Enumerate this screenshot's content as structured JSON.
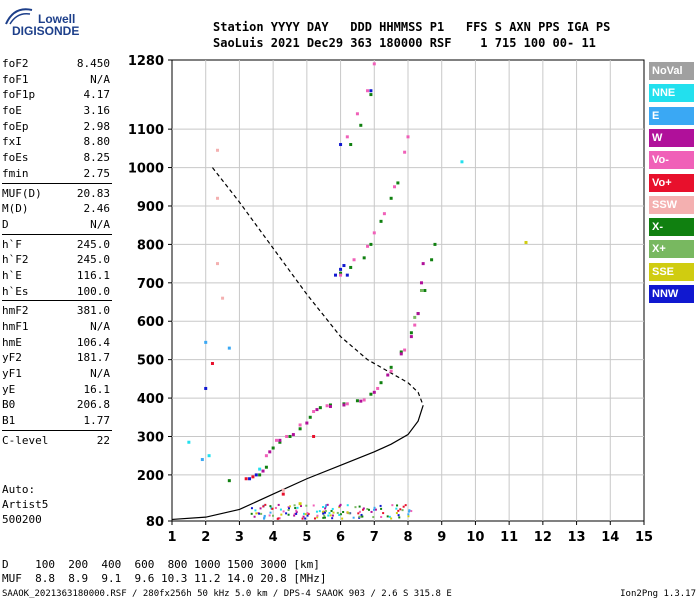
{
  "logo": {
    "line1": "Lowell",
    "line2": "DIGISONDE"
  },
  "header": {
    "line1": "Station YYYY DAY   DDD HHMMSS P1   FFS S AXN PPS IGA PS",
    "line2": "SaoLuis 2021 Dec29 363 180000 RSF    1 715 100 00- 11"
  },
  "params": [
    {
      "name": "foF2",
      "value": "8.450"
    },
    {
      "name": "foF1",
      "value": "N/A"
    },
    {
      "name": "foF1p",
      "value": "4.17"
    },
    {
      "name": "foE",
      "value": "3.16"
    },
    {
      "name": "foEp",
      "value": "2.98"
    },
    {
      "name": "fxI",
      "value": "8.80"
    },
    {
      "name": "foEs",
      "value": "8.25"
    },
    {
      "name": "fmin",
      "value": "2.75"
    },
    {
      "name": "MUF(D)",
      "value": "20.83"
    },
    {
      "name": "M(D)",
      "value": "2.46"
    },
    {
      "name": "D",
      "value": "N/A"
    },
    {
      "name": "h`F",
      "value": "245.0"
    },
    {
      "name": "h`F2",
      "value": "245.0"
    },
    {
      "name": "h`E",
      "value": "116.1"
    },
    {
      "name": "h`Es",
      "value": "100.0"
    },
    {
      "name": "hmF2",
      "value": "381.0"
    },
    {
      "name": "hmF1",
      "value": "N/A"
    },
    {
      "name": "hmE",
      "value": "106.4"
    },
    {
      "name": "yF2",
      "value": "181.7"
    },
    {
      "name": "yF1",
      "value": "N/A"
    },
    {
      "name": "yE",
      "value": "16.1"
    },
    {
      "name": "B0",
      "value": "206.8"
    },
    {
      "name": "B1",
      "value": "1.77"
    },
    {
      "name": "C-level",
      "value": "22"
    }
  ],
  "auto": {
    "l1": "Auto:",
    "l2": "Artist5",
    "l3": "500200"
  },
  "legend": [
    {
      "label": "NoVal",
      "color": "#a0a0a0"
    },
    {
      "label": "NNE",
      "color": "#22e0ee"
    },
    {
      "label": "E",
      "color": "#3aa8f4"
    },
    {
      "label": "W",
      "color": "#b0109a"
    },
    {
      "label": "Vo-",
      "color": "#f060b8"
    },
    {
      "label": "Vo+",
      "color": "#e8102c"
    },
    {
      "label": "SSW",
      "color": "#f4b0b0"
    },
    {
      "label": "X-",
      "color": "#108010"
    },
    {
      "label": "X+",
      "color": "#78b860"
    },
    {
      "label": "SSE",
      "color": "#d0cc10"
    },
    {
      "label": "NNW",
      "color": "#1018d0"
    }
  ],
  "bottom": {
    "d_line": "D    100  200  400  600  800 1000 1500 3000 [km]",
    "muf_line": "MUF  8.8  8.9  9.1  9.6 10.3 11.2 14.0 20.8 [MHz]"
  },
  "footer": {
    "left": "SAAOK_2021363180000.RSF / 280fx256h 50 kHz 5.0 km / DPS-4 SAAOK 903 / 2.6 S 315.8 E",
    "right": "Ion2Png 1.3.17"
  },
  "chart_data": {
    "type": "scatter",
    "xlim": [
      1,
      15
    ],
    "ylim": [
      80,
      1280
    ],
    "x_ticks": [
      1,
      2,
      3,
      4,
      5,
      6,
      7,
      8,
      9,
      10,
      11,
      12,
      13,
      14,
      15
    ],
    "y_ticks": [
      80,
      200,
      300,
      400,
      500,
      600,
      700,
      800,
      900,
      1000,
      1100,
      1280
    ],
    "grid": true,
    "series": [
      {
        "name": "X-",
        "color": "#108010",
        "points": [
          [
            2.7,
            185
          ],
          [
            3.6,
            200
          ],
          [
            3.8,
            220
          ],
          [
            4.0,
            270
          ],
          [
            4.2,
            285
          ],
          [
            4.5,
            300
          ],
          [
            4.8,
            320
          ],
          [
            5.1,
            350
          ],
          [
            5.4,
            375
          ],
          [
            5.7,
            382
          ],
          [
            6.1,
            385
          ],
          [
            6.5,
            393
          ],
          [
            6.9,
            410
          ],
          [
            7.2,
            440
          ],
          [
            7.5,
            480
          ],
          [
            7.8,
            520
          ],
          [
            8.1,
            570
          ],
          [
            8.3,
            620
          ],
          [
            8.5,
            680
          ],
          [
            8.7,
            760
          ],
          [
            8.8,
            800
          ],
          [
            6.0,
            725
          ],
          [
            6.3,
            740
          ],
          [
            6.7,
            765
          ],
          [
            6.9,
            800
          ],
          [
            7.2,
            860
          ],
          [
            7.5,
            920
          ],
          [
            7.7,
            960
          ],
          [
            6.3,
            1060
          ],
          [
            6.6,
            1110
          ],
          [
            6.9,
            1190
          ]
        ]
      },
      {
        "name": "W",
        "color": "#b0109a",
        "points": [
          [
            3.7,
            210
          ],
          [
            3.9,
            260
          ],
          [
            4.2,
            290
          ],
          [
            4.6,
            305
          ],
          [
            5.0,
            335
          ],
          [
            5.3,
            370
          ],
          [
            5.7,
            378
          ],
          [
            6.1,
            382
          ],
          [
            6.6,
            392
          ],
          [
            7.0,
            415
          ],
          [
            7.4,
            460
          ],
          [
            7.8,
            515
          ],
          [
            8.1,
            560
          ],
          [
            8.3,
            620
          ],
          [
            8.4,
            700
          ],
          [
            8.45,
            750
          ]
        ]
      },
      {
        "name": "Vo-",
        "color": "#f060b8",
        "points": [
          [
            3.8,
            250
          ],
          [
            4.1,
            290
          ],
          [
            4.4,
            300
          ],
          [
            4.8,
            330
          ],
          [
            5.2,
            365
          ],
          [
            5.6,
            380
          ],
          [
            6.2,
            385
          ],
          [
            6.7,
            395
          ],
          [
            7.1,
            425
          ],
          [
            7.5,
            470
          ],
          [
            7.9,
            525
          ],
          [
            8.2,
            590
          ],
          [
            6.0,
            720
          ],
          [
            6.4,
            760
          ],
          [
            6.8,
            795
          ],
          [
            7.0,
            830
          ],
          [
            7.3,
            880
          ],
          [
            7.6,
            950
          ],
          [
            7.9,
            1040
          ],
          [
            8.0,
            1080
          ],
          [
            6.2,
            1080
          ],
          [
            6.5,
            1140
          ],
          [
            6.8,
            1200
          ],
          [
            7.0,
            1270
          ]
        ]
      },
      {
        "name": "Vo+",
        "color": "#e8102c",
        "points": [
          [
            3.2,
            190
          ],
          [
            3.4,
            195
          ],
          [
            2.2,
            490
          ],
          [
            4.3,
            150
          ],
          [
            5.2,
            300
          ]
        ]
      },
      {
        "name": "NNW",
        "color": "#1018d0",
        "points": [
          [
            2.0,
            425
          ],
          [
            3.3,
            190
          ],
          [
            3.5,
            200
          ],
          [
            5.85,
            720
          ],
          [
            6.0,
            735
          ],
          [
            6.1,
            745
          ],
          [
            6.2,
            720
          ],
          [
            6.0,
            1060
          ],
          [
            6.9,
            1200
          ]
        ]
      },
      {
        "name": "E",
        "color": "#3aa8f4",
        "points": [
          [
            2.0,
            545
          ],
          [
            2.7,
            530
          ],
          [
            1.9,
            240
          ]
        ]
      },
      {
        "name": "NNE",
        "color": "#22e0ee",
        "points": [
          [
            1.5,
            285
          ],
          [
            9.6,
            1015
          ],
          [
            2.1,
            250
          ],
          [
            3.6,
            215
          ]
        ]
      },
      {
        "name": "SSW",
        "color": "#f4b0b0",
        "points": [
          [
            2.35,
            1045
          ],
          [
            2.35,
            920
          ],
          [
            2.35,
            750
          ],
          [
            2.5,
            660
          ],
          [
            4.3,
            160
          ]
        ]
      },
      {
        "name": "X+",
        "color": "#78b860",
        "points": [
          [
            8.4,
            680
          ],
          [
            8.2,
            610
          ]
        ]
      },
      {
        "name": "SSE",
        "color": "#d0cc10",
        "points": [
          [
            11.5,
            805
          ],
          [
            4.8,
            125
          ]
        ]
      }
    ],
    "es_cluster": {
      "x_range": [
        3.3,
        8.2
      ],
      "y_range": [
        88,
        125
      ]
    },
    "profile_curve": [
      [
        1.0,
        84
      ],
      [
        2.0,
        90
      ],
      [
        3.0,
        110
      ],
      [
        4.0,
        150
      ],
      [
        5.0,
        190
      ],
      [
        6.0,
        225
      ],
      [
        7.0,
        260
      ],
      [
        7.5,
        280
      ],
      [
        8.0,
        305
      ],
      [
        8.3,
        340
      ],
      [
        8.45,
        381
      ]
    ],
    "dashed_curve": [
      [
        2.2,
        1000
      ],
      [
        3.0,
        910
      ],
      [
        4.0,
        790
      ],
      [
        5.0,
        670
      ],
      [
        6.0,
        560
      ],
      [
        6.8,
        500
      ],
      [
        7.5,
        465
      ],
      [
        8.0,
        440
      ],
      [
        8.3,
        415
      ],
      [
        8.45,
        381
      ]
    ]
  }
}
